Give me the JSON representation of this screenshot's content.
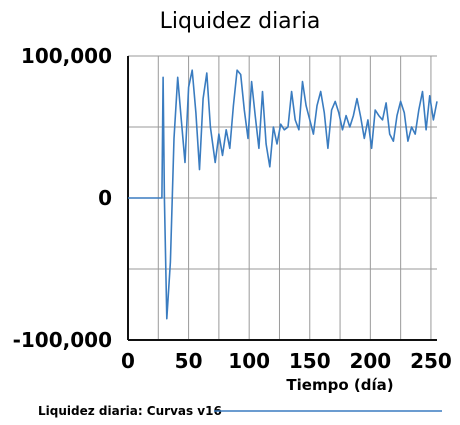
{
  "chart_data": {
    "type": "line",
    "title": "Liquidez diaria",
    "xlabel": "Tiempo (día)",
    "ylabel": "",
    "xlim": [
      0,
      255
    ],
    "ylim": [
      -100000,
      100000
    ],
    "x_ticks": [
      0,
      50,
      100,
      150,
      200,
      250
    ],
    "x_tick_labels": [
      "0",
      "50",
      "100",
      "150",
      "200",
      "250"
    ],
    "y_ticks": [
      -100000,
      0,
      100000
    ],
    "y_tick_labels": [
      "-100,000",
      "0",
      "100,000"
    ],
    "grid": true,
    "legend": "bottom",
    "series": [
      {
        "name": "Liquidez diaria: Curvas v16",
        "color": "#3a7cc0",
        "x": [
          0,
          28,
          29,
          30,
          32,
          35,
          38,
          41,
          44,
          47,
          50,
          53,
          56,
          59,
          62,
          65,
          68,
          72,
          75,
          78,
          81,
          84,
          87,
          90,
          93,
          96,
          99,
          102,
          105,
          108,
          111,
          114,
          117,
          120,
          123,
          126,
          129,
          132,
          135,
          138,
          141,
          144,
          147,
          150,
          153,
          156,
          159,
          162,
          165,
          168,
          171,
          174,
          177,
          180,
          183,
          186,
          189,
          192,
          195,
          198,
          201,
          204,
          207,
          210,
          213,
          216,
          219,
          222,
          225,
          228,
          231,
          234,
          237,
          240,
          243,
          246,
          249,
          252,
          255
        ],
        "y": [
          0,
          0,
          85000,
          0,
          -85000,
          -45000,
          42000,
          85000,
          55000,
          25000,
          78000,
          90000,
          60000,
          20000,
          70000,
          88000,
          50000,
          25000,
          45000,
          30000,
          48000,
          35000,
          65000,
          90000,
          87000,
          62000,
          42000,
          82000,
          58000,
          35000,
          75000,
          38000,
          22000,
          50000,
          38000,
          52000,
          48000,
          50000,
          75000,
          55000,
          48000,
          82000,
          65000,
          55000,
          45000,
          65000,
          75000,
          60000,
          35000,
          62000,
          68000,
          60000,
          48000,
          58000,
          50000,
          58000,
          70000,
          57000,
          42000,
          55000,
          35000,
          62000,
          58000,
          55000,
          67000,
          45000,
          40000,
          58000,
          68000,
          60000,
          40000,
          50000,
          45000,
          62000,
          75000,
          48000,
          72000,
          55000,
          68000
        ]
      }
    ]
  }
}
